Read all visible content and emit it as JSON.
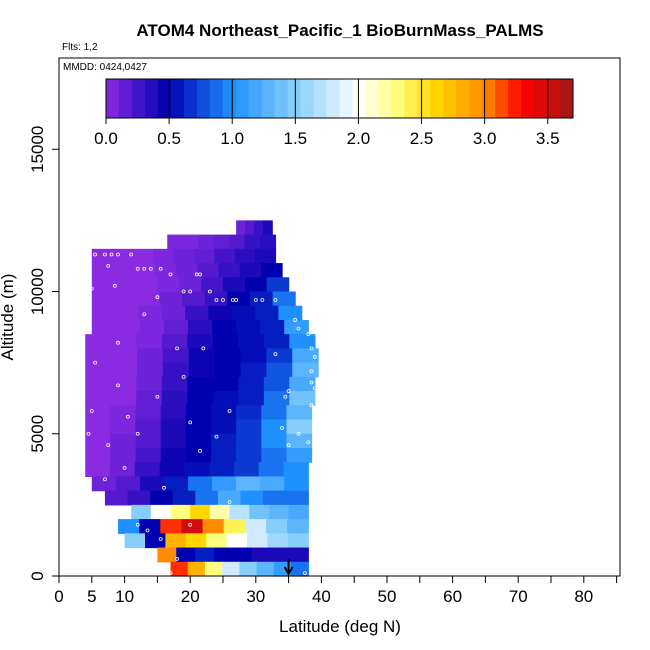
{
  "chart_data": {
    "type": "heatmap",
    "title": "ATOM4 Northeast_Pacific_1 BioBurnMass_PALMS",
    "flights_note": "Flts: 1,2",
    "date_note": "MMDD: 0424,0427",
    "xlabel": "Latitude (deg N)",
    "ylabel": "Altitude (m)",
    "xlim": [
      0,
      85
    ],
    "ylim": [
      0,
      17500
    ],
    "xticks": [
      0,
      5,
      10,
      20,
      30,
      40,
      50,
      60,
      70,
      80
    ],
    "yticks": [
      0,
      5000,
      10000,
      15000
    ],
    "colorbar": {
      "range": [
        0,
        3.7
      ],
      "ticks": [
        0.0,
        0.5,
        1.0,
        1.5,
        2.0,
        2.5,
        3.0,
        3.5
      ],
      "tick_labels": [
        "0.0",
        "0.5",
        "1.0",
        "1.5",
        "2.0",
        "2.5",
        "3.0",
        "3.5"
      ],
      "stops": [
        {
          "value": 0.0,
          "color": "#8a2be2"
        },
        {
          "value": 0.5,
          "color": "#0000b0"
        },
        {
          "value": 1.0,
          "color": "#1e90ff"
        },
        {
          "value": 1.5,
          "color": "#87cefa"
        },
        {
          "value": 2.0,
          "color": "#ffffff"
        },
        {
          "value": 2.3,
          "color": "#ffff80"
        },
        {
          "value": 2.6,
          "color": "#ffd700"
        },
        {
          "value": 3.0,
          "color": "#ff8c00"
        },
        {
          "value": 3.3,
          "color": "#ff0000"
        },
        {
          "value": 3.7,
          "color": "#a01818"
        }
      ]
    },
    "rows": [
      {
        "y0": 12000,
        "y1": 12500,
        "x0": 27,
        "x1": 32.5,
        "values": [
          0.1,
          0.2,
          0.3,
          0.4
        ]
      },
      {
        "y0": 11500,
        "y1": 12000,
        "x0": 16.5,
        "x1": 33,
        "values": [
          0.05,
          0.05,
          0.1,
          0.15,
          0.2,
          0.3,
          0.35
        ]
      },
      {
        "y0": 11000,
        "y1": 11500,
        "x0": 5,
        "x1": 33,
        "values": [
          0.0,
          0.0,
          0.0,
          0.05,
          0.1,
          0.15,
          0.25,
          0.35,
          0.4
        ]
      },
      {
        "y0": 10500,
        "y1": 11000,
        "x0": 5,
        "x1": 34,
        "values": [
          0.0,
          0.0,
          0.0,
          0.05,
          0.1,
          0.2,
          0.3,
          0.4,
          0.5
        ]
      },
      {
        "y0": 10000,
        "y1": 10500,
        "x0": 5,
        "x1": 35,
        "values": [
          0.0,
          0.0,
          0.0,
          0.05,
          0.1,
          0.25,
          0.4,
          0.5,
          0.7
        ]
      },
      {
        "y0": 9500,
        "y1": 10000,
        "x0": 5,
        "x1": 36,
        "values": [
          0.0,
          0.0,
          0.0,
          0.1,
          0.2,
          0.3,
          0.5,
          0.6,
          0.9
        ]
      },
      {
        "y0": 9000,
        "y1": 9500,
        "x0": 5,
        "x1": 37,
        "values": [
          0.0,
          0.0,
          0.05,
          0.1,
          0.3,
          0.45,
          0.55,
          0.6,
          1.0
        ]
      },
      {
        "y0": 8500,
        "y1": 9000,
        "x0": 5,
        "x1": 38,
        "values": [
          0.0,
          0.0,
          0.05,
          0.15,
          0.35,
          0.5,
          0.55,
          0.6,
          1.1
        ]
      },
      {
        "y0": 8000,
        "y1": 8500,
        "x0": 4,
        "x1": 39,
        "values": [
          0.0,
          0.0,
          0.05,
          0.2,
          0.4,
          0.5,
          0.55,
          0.6,
          1.0
        ]
      },
      {
        "y0": 7500,
        "y1": 8000,
        "x0": 4,
        "x1": 39.5,
        "values": [
          0.0,
          0.0,
          0.1,
          0.25,
          0.45,
          0.5,
          0.55,
          0.7,
          1.2
        ]
      },
      {
        "y0": 7000,
        "y1": 7500,
        "x0": 4,
        "x1": 39.5,
        "values": [
          0.0,
          0.0,
          0.1,
          0.3,
          0.45,
          0.5,
          0.6,
          0.8,
          1.3
        ]
      },
      {
        "y0": 6500,
        "y1": 7000,
        "x0": 4,
        "x1": 39,
        "values": [
          0.0,
          0.0,
          0.1,
          0.3,
          0.5,
          0.5,
          0.6,
          0.8,
          1.2
        ]
      },
      {
        "y0": 6000,
        "y1": 6500,
        "x0": 4,
        "x1": 39,
        "values": [
          0.0,
          0.0,
          0.15,
          0.35,
          0.5,
          0.55,
          0.6,
          0.9,
          1.4
        ]
      },
      {
        "y0": 5500,
        "y1": 6000,
        "x0": 4,
        "x1": 38.5,
        "values": [
          0.0,
          0.05,
          0.15,
          0.35,
          0.5,
          0.55,
          0.65,
          0.9,
          1.3
        ]
      },
      {
        "y0": 5000,
        "y1": 5500,
        "x0": 4,
        "x1": 38.5,
        "values": [
          0.0,
          0.05,
          0.2,
          0.4,
          0.5,
          0.55,
          0.7,
          1.0,
          1.5
        ]
      },
      {
        "y0": 4500,
        "y1": 5000,
        "x0": 4,
        "x1": 38.5,
        "values": [
          0.0,
          0.1,
          0.2,
          0.4,
          0.5,
          0.6,
          0.7,
          1.0,
          1.3
        ]
      },
      {
        "y0": 4000,
        "y1": 4500,
        "x0": 4,
        "x1": 38.5,
        "values": [
          0.0,
          0.1,
          0.25,
          0.45,
          0.5,
          0.6,
          0.7,
          0.9,
          1.1
        ]
      },
      {
        "y0": 3500,
        "y1": 4000,
        "x0": 4,
        "x1": 38,
        "values": [
          0.0,
          0.1,
          0.3,
          0.45,
          0.55,
          0.6,
          0.7,
          0.9,
          1.0
        ]
      },
      {
        "y0": 3000,
        "y1": 3500,
        "x0": 5,
        "x1": 38,
        "values": [
          0.1,
          0.2,
          0.4,
          0.6,
          0.9,
          1.1,
          1.3,
          1.2,
          1.0
        ]
      },
      {
        "y0": 2500,
        "y1": 3000,
        "x0": 7,
        "x1": 38,
        "values": [
          0.2,
          0.3,
          0.5,
          0.6,
          0.9,
          1.2,
          1.0,
          0.9,
          0.9
        ]
      },
      {
        "y0": 2000,
        "y1": 2500,
        "x0": 11,
        "x1": 38,
        "values": [
          1.5,
          2.0,
          2.3,
          2.6,
          2.2,
          1.7,
          1.4,
          1.3,
          1.2
        ]
      },
      {
        "y0": 1500,
        "y1": 2000,
        "x0": 9,
        "x1": 38,
        "values": [
          1.0,
          0.5,
          3.2,
          3.5,
          3.0,
          2.4,
          1.8,
          1.5,
          1.3
        ]
      },
      {
        "y0": 1000,
        "y1": 1500,
        "x0": 10,
        "x1": 38,
        "values": [
          1.5,
          0.5,
          2.8,
          2.6,
          2.3,
          2.0,
          1.8,
          1.6,
          1.5
        ]
      },
      {
        "y0": 500,
        "y1": 1000,
        "x0": 15,
        "x1": 38,
        "values": [
          3.0,
          0.5,
          0.6,
          0.5,
          0.5,
          0.4,
          0.4,
          0.4
        ]
      },
      {
        "y0": 0,
        "y1": 500,
        "x0": 17,
        "x1": 38,
        "values": [
          3.2,
          2.8,
          2.3,
          1.8,
          1.5,
          1.3,
          1.1,
          0.9
        ]
      }
    ],
    "samples": [
      {
        "x": 5.5,
        "y": 11300
      },
      {
        "x": 7,
        "y": 11300
      },
      {
        "x": 8,
        "y": 11300
      },
      {
        "x": 9,
        "y": 11300
      },
      {
        "x": 11,
        "y": 11300
      },
      {
        "x": 7.5,
        "y": 10900
      },
      {
        "x": 12,
        "y": 10800
      },
      {
        "x": 13,
        "y": 10800
      },
      {
        "x": 14,
        "y": 10800
      },
      {
        "x": 15.5,
        "y": 10800
      },
      {
        "x": 17,
        "y": 10600
      },
      {
        "x": 21,
        "y": 10600
      },
      {
        "x": 21.5,
        "y": 10600
      },
      {
        "x": 19,
        "y": 10000
      },
      {
        "x": 20,
        "y": 10000
      },
      {
        "x": 23,
        "y": 10000
      },
      {
        "x": 24,
        "y": 9700
      },
      {
        "x": 25,
        "y": 9700
      },
      {
        "x": 26.5,
        "y": 9700
      },
      {
        "x": 27,
        "y": 9700
      },
      {
        "x": 30,
        "y": 9700
      },
      {
        "x": 31,
        "y": 9700
      },
      {
        "x": 33,
        "y": 9700
      },
      {
        "x": 15,
        "y": 9800
      },
      {
        "x": 5,
        "y": 10100
      },
      {
        "x": 8.5,
        "y": 10200
      },
      {
        "x": 13,
        "y": 9200
      },
      {
        "x": 36,
        "y": 9000
      },
      {
        "x": 36.5,
        "y": 8700
      },
      {
        "x": 38,
        "y": 8500
      },
      {
        "x": 9,
        "y": 8200
      },
      {
        "x": 18,
        "y": 8000
      },
      {
        "x": 22,
        "y": 8000
      },
      {
        "x": 33,
        "y": 7800
      },
      {
        "x": 38.5,
        "y": 8000
      },
      {
        "x": 39,
        "y": 7700
      },
      {
        "x": 5.5,
        "y": 7500
      },
      {
        "x": 38.5,
        "y": 7200
      },
      {
        "x": 38.5,
        "y": 6800
      },
      {
        "x": 39,
        "y": 6600
      },
      {
        "x": 19,
        "y": 7000
      },
      {
        "x": 9,
        "y": 6700
      },
      {
        "x": 35,
        "y": 6500
      },
      {
        "x": 34.5,
        "y": 6300
      },
      {
        "x": 38.5,
        "y": 6000
      },
      {
        "x": 15,
        "y": 6300
      },
      {
        "x": 5,
        "y": 5800
      },
      {
        "x": 26,
        "y": 5800
      },
      {
        "x": 10.5,
        "y": 5600
      },
      {
        "x": 20,
        "y": 5400
      },
      {
        "x": 34,
        "y": 5200
      },
      {
        "x": 36.5,
        "y": 5000
      },
      {
        "x": 4.5,
        "y": 5000
      },
      {
        "x": 12,
        "y": 5000
      },
      {
        "x": 24,
        "y": 4900
      },
      {
        "x": 38,
        "y": 4700
      },
      {
        "x": 7.5,
        "y": 4600
      },
      {
        "x": 35,
        "y": 4600
      },
      {
        "x": 21.5,
        "y": 4400
      },
      {
        "x": 10,
        "y": 3800
      },
      {
        "x": 7,
        "y": 3400
      },
      {
        "x": 16,
        "y": 3100
      },
      {
        "x": 26,
        "y": 2600
      },
      {
        "x": 10,
        "y": 2200
      },
      {
        "x": 12,
        "y": 1800
      },
      {
        "x": 13.5,
        "y": 1600
      },
      {
        "x": 15.5,
        "y": 1300
      },
      {
        "x": 20,
        "y": 1800
      },
      {
        "x": 18,
        "y": 600
      },
      {
        "x": 17,
        "y": 100
      },
      {
        "x": 37.5,
        "y": 100
      }
    ],
    "arrow": {
      "x": 35,
      "y_top": 600,
      "y_bottom": 0
    }
  }
}
